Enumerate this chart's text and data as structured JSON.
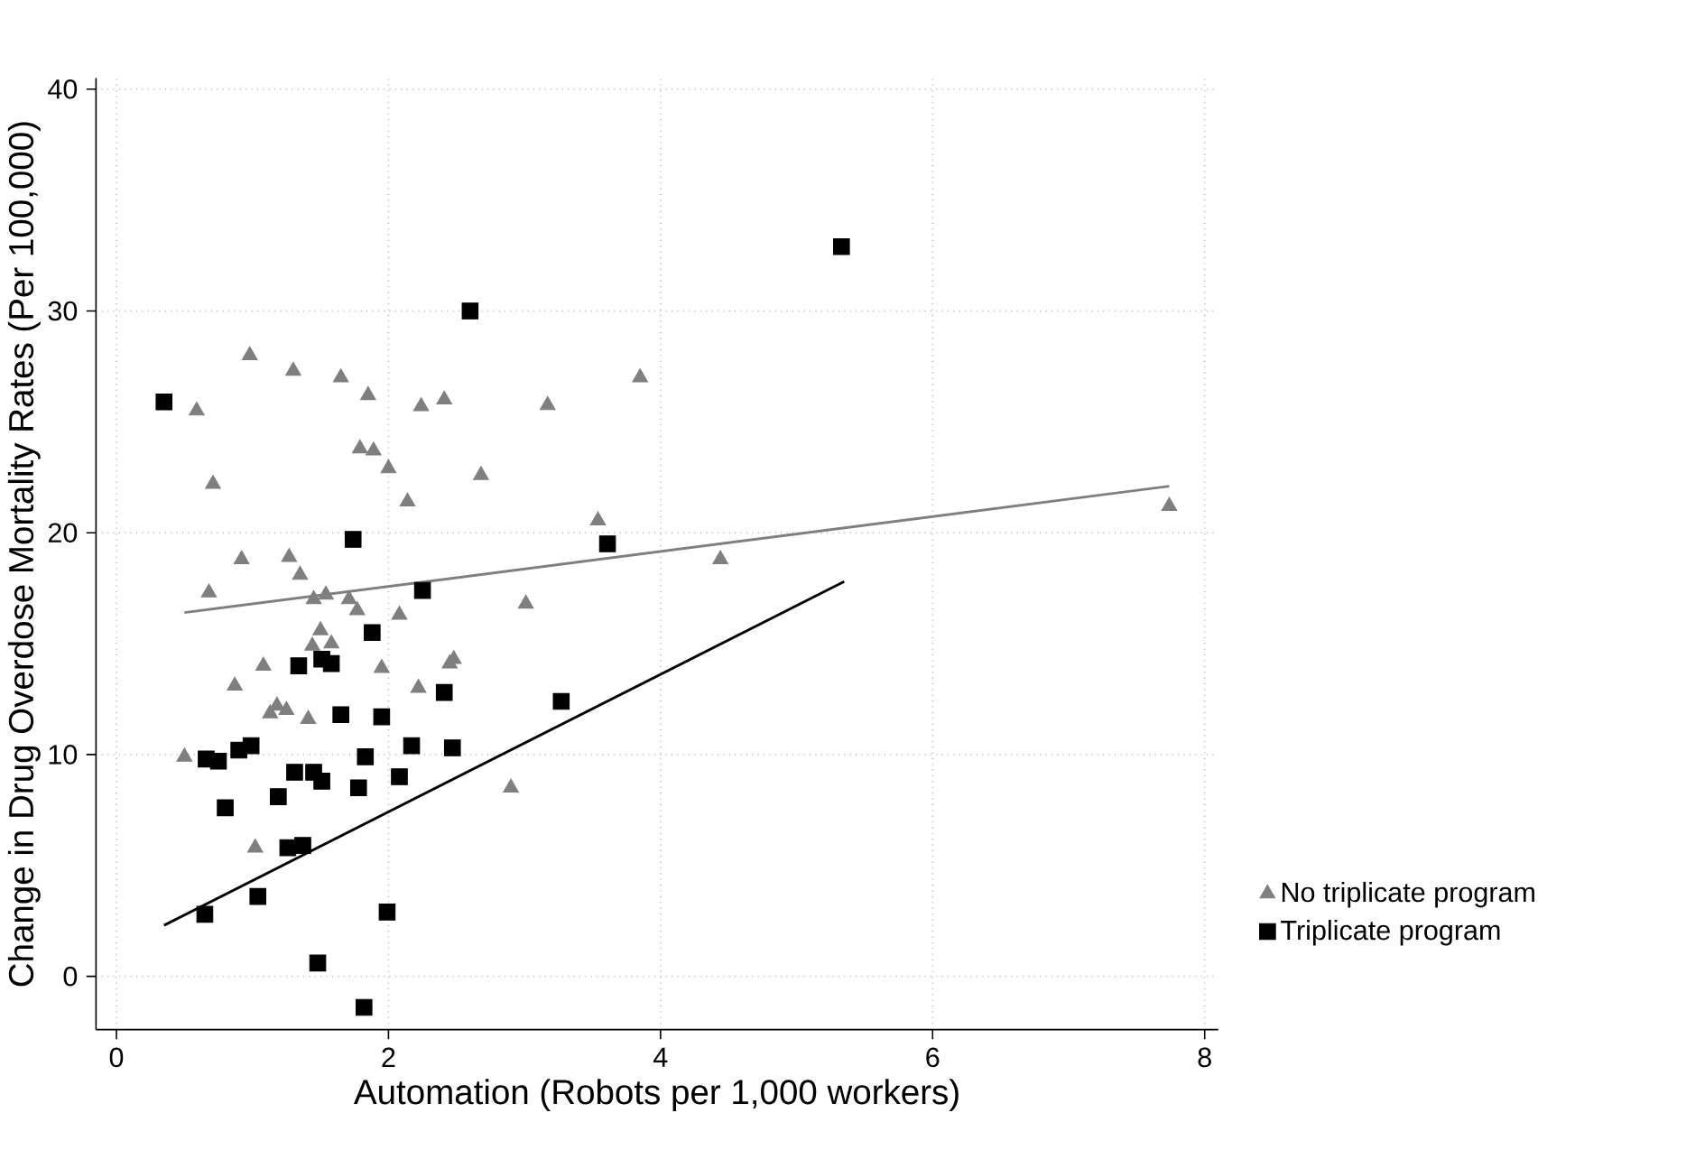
{
  "chart_data": {
    "type": "scatter",
    "xlabel": "Automation (Robots per 1,000 workers)",
    "ylabel": "Change in Drug Overdose Mortality Rates (Per 100,000)",
    "xlim": [
      -0.15,
      8.1
    ],
    "ylim": [
      -2.4,
      40.5
    ],
    "xticks": [
      0,
      2,
      4,
      6,
      8
    ],
    "yticks": [
      0,
      10,
      20,
      30,
      40
    ],
    "grid": true,
    "legend": "right",
    "series": [
      {
        "name": "No triplicate program",
        "color": "#7f7f7f",
        "marker": "triangle",
        "x": [
          0.98,
          1.3,
          1.65,
          1.85,
          2.24,
          2.41,
          0.59,
          1.79,
          1.89,
          2.0,
          2.68,
          0.71,
          2.14,
          0.92,
          1.27,
          1.35,
          0.68,
          1.45,
          1.54,
          1.71,
          1.77,
          2.08,
          1.5,
          1.44,
          1.58,
          1.08,
          1.95,
          2.45,
          2.48,
          0.87,
          2.22,
          1.18,
          1.25,
          1.13,
          1.41,
          0.5,
          1.02,
          3.17,
          3.85,
          3.54,
          4.44,
          3.01,
          2.9,
          7.74
        ],
        "values": [
          28.0,
          27.3,
          27.0,
          26.2,
          25.7,
          26.0,
          25.5,
          23.8,
          23.7,
          22.9,
          22.6,
          22.2,
          21.4,
          18.8,
          18.9,
          18.1,
          17.3,
          17.0,
          17.2,
          17.0,
          16.5,
          16.3,
          15.6,
          14.9,
          15.0,
          14.0,
          13.9,
          14.1,
          14.3,
          13.1,
          13.0,
          12.2,
          12.0,
          11.85,
          11.6,
          9.9,
          5.8,
          25.75,
          27.0,
          20.55,
          18.8,
          16.8,
          8.5,
          21.2
        ]
      },
      {
        "name": "Triplicate program",
        "color": "#000000",
        "marker": "square",
        "x": [
          0.35,
          1.74,
          2.25,
          1.88,
          1.34,
          1.51,
          1.58,
          2.41,
          1.65,
          1.95,
          0.66,
          0.75,
          0.9,
          0.99,
          1.83,
          2.17,
          2.47,
          1.31,
          1.45,
          1.51,
          1.78,
          2.08,
          1.19,
          0.8,
          1.26,
          1.37,
          1.04,
          0.65,
          1.99,
          1.48,
          1.82,
          2.6,
          3.61,
          3.27,
          5.33
        ],
        "values": [
          25.9,
          19.7,
          17.4,
          15.5,
          14.0,
          14.3,
          14.1,
          12.8,
          11.8,
          11.7,
          9.8,
          9.7,
          10.2,
          10.4,
          9.9,
          10.4,
          10.3,
          9.2,
          9.2,
          8.8,
          8.5,
          9.0,
          8.1,
          7.6,
          5.8,
          5.9,
          3.6,
          2.8,
          2.9,
          0.6,
          -1.4,
          30.0,
          19.5,
          12.4,
          32.9
        ]
      },
      {
        "type": "line",
        "color": "#7f7f7f",
        "marker": "none",
        "x": [
          0.5,
          7.74
        ],
        "values": [
          16.4,
          22.1
        ]
      },
      {
        "type": "line",
        "color": "#000000",
        "marker": "none",
        "x": [
          0.35,
          5.35
        ],
        "values": [
          2.3,
          17.8
        ]
      }
    ]
  }
}
